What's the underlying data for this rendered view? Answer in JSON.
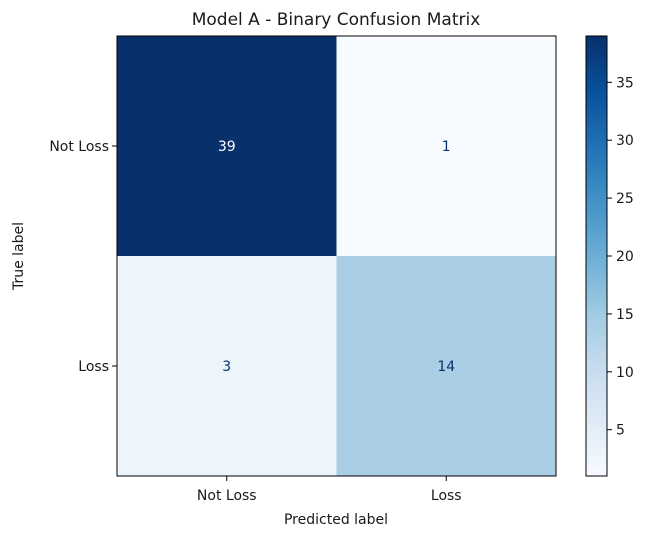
{
  "chart_data": {
    "type": "heatmap",
    "title": "Model A - Binary Confusion Matrix",
    "xlabel": "Predicted label",
    "ylabel": "True label",
    "x_categories": [
      "Not Loss",
      "Loss"
    ],
    "y_categories": [
      "Not Loss",
      "Loss"
    ],
    "matrix": [
      [
        39,
        1
      ],
      [
        3,
        14
      ]
    ],
    "colormap": "Blues",
    "colorbar": {
      "min": 1,
      "max": 39,
      "ticks": [
        5,
        10,
        15,
        20,
        25,
        30,
        35
      ]
    },
    "grid": false
  }
}
